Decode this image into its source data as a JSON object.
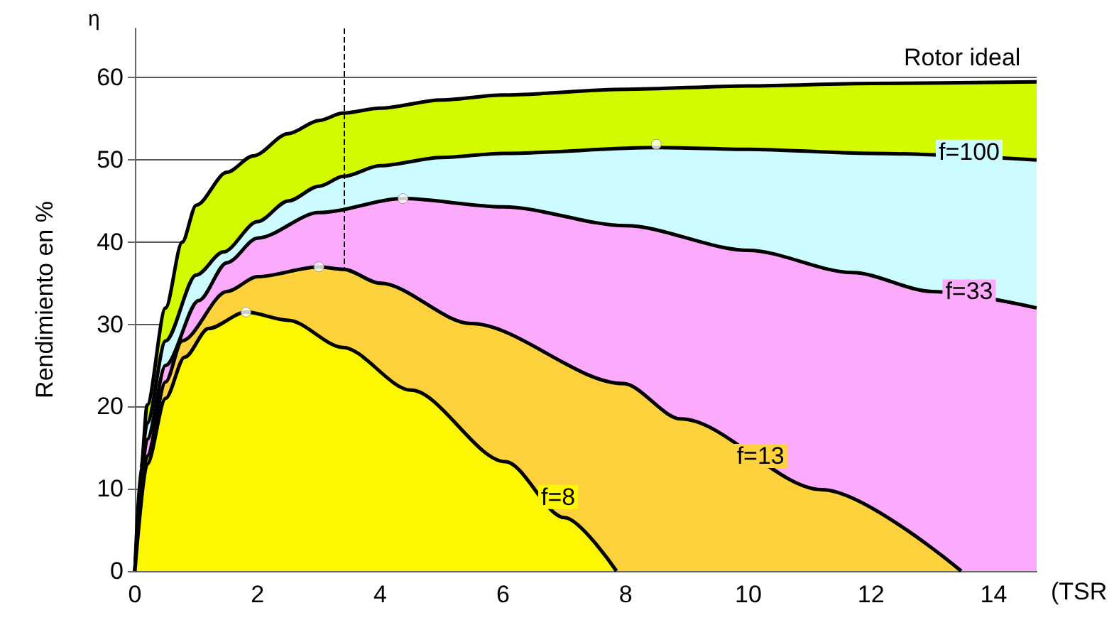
{
  "chart_data": {
    "type": "area",
    "xlabel": "(TSR",
    "ylabel": "Rendimiento en %",
    "annotations": [
      "η"
    ],
    "xlim": [
      0,
      14.7
    ],
    "ylim": [
      0,
      66
    ],
    "xticks": [
      0,
      2,
      4,
      6,
      8,
      10,
      12,
      14
    ],
    "yticks": [
      0,
      10,
      20,
      30,
      40,
      50,
      60
    ],
    "grid": "y",
    "legend": false,
    "marker": "none",
    "ref_lines": [
      {
        "axis": "x",
        "value": 3.4,
        "label": null,
        "color": "#000000",
        "line_style": "dashed"
      }
    ],
    "series": [
      {
        "name": "Rotor ideal",
        "color": "#d4fa00",
        "x": [
          0,
          0.1,
          0.2,
          0.5,
          0.77,
          1,
          1.5,
          1.93,
          2.5,
          3,
          3.39,
          4,
          5,
          6,
          8,
          10,
          12,
          14.7
        ],
        "values": [
          0,
          12.5,
          20.2,
          32,
          40,
          44.5,
          48.5,
          50.5,
          53.2,
          54.8,
          55.7,
          56.3,
          57.3,
          57.9,
          58.6,
          59,
          59.3,
          59.5
        ]
      },
      {
        "name": "f=100",
        "color": "#ccfcff",
        "x": [
          0,
          0.2,
          0.5,
          1,
          1.44,
          2,
          2.5,
          3,
          3.4,
          4,
          5,
          6,
          8.5,
          10,
          12,
          14.7
        ],
        "values": [
          0,
          18,
          28,
          36,
          38.8,
          42.5,
          45,
          46.8,
          48,
          49.3,
          50.3,
          50.8,
          51.5,
          51.3,
          50.8,
          50
        ]
      },
      {
        "name": "f=33",
        "color": "#fcaafc",
        "x": [
          0,
          0.2,
          0.5,
          1.04,
          1.5,
          2,
          3,
          4.37,
          6,
          8,
          10,
          11.7,
          13,
          14.7
        ],
        "values": [
          0,
          16,
          25,
          32.9,
          37.5,
          40.5,
          43.6,
          45.3,
          44.3,
          42,
          39,
          36.3,
          34,
          32
        ]
      },
      {
        "name": "f=13",
        "color": "#fdd23c",
        "x": [
          0,
          0.2,
          0.5,
          0.77,
          1.5,
          2,
          3,
          3.4,
          4,
          5.48,
          7.96,
          8.9,
          11.2,
          13.47
        ],
        "values": [
          0,
          14,
          23,
          28,
          34,
          35.8,
          37,
          36.7,
          35,
          30.1,
          22.8,
          18.5,
          9.9,
          0
        ]
      },
      {
        "name": "f=8",
        "color": "#fdf800",
        "x": [
          0,
          0.2,
          0.5,
          0.81,
          1.2,
          1.81,
          2.5,
          3.39,
          4.5,
          6.04,
          7,
          7.85
        ],
        "values": [
          0,
          13,
          21,
          26,
          29.5,
          31.5,
          30.5,
          27.2,
          22,
          13.3,
          6.5,
          0
        ]
      },
      {
        "type": "scatter",
        "marker": "circle",
        "color": "#ffffff",
        "x": [
          1.81,
          3,
          4.37,
          8.5
        ],
        "values": [
          31.5,
          37,
          45.3,
          51.9
        ]
      }
    ]
  }
}
